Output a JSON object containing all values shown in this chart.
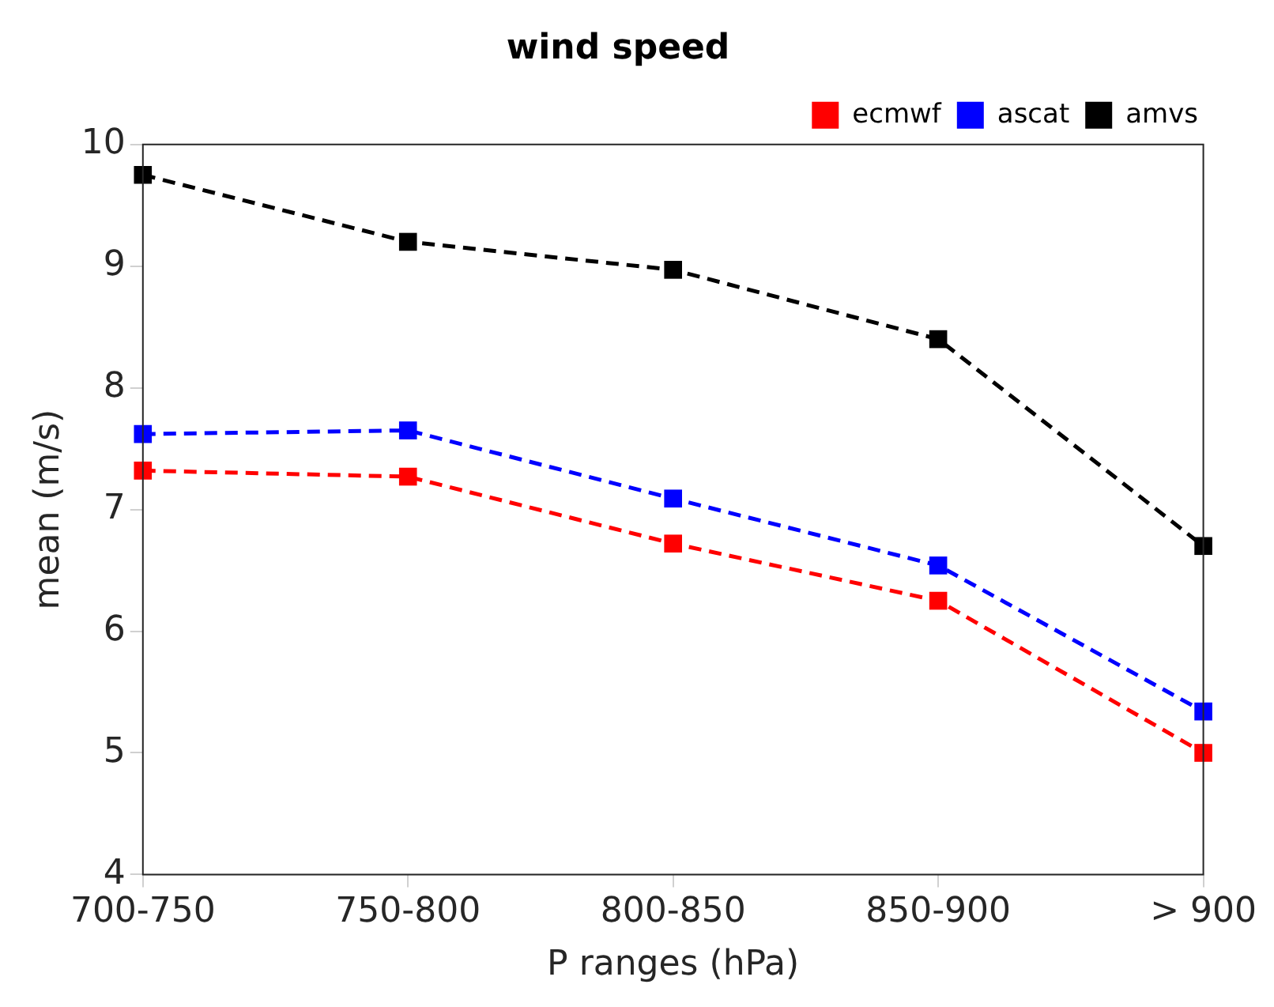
{
  "chart_data": {
    "type": "line",
    "title": "wind speed",
    "xlabel": "P ranges (hPa)",
    "ylabel": "mean (m/s)",
    "categories": [
      "700-750",
      "750-800",
      "800-850",
      "850-900",
      "> 900"
    ],
    "series": [
      {
        "name": "ecmwf",
        "color": "#ff0000",
        "values": [
          7.32,
          7.27,
          6.72,
          6.25,
          5.0
        ]
      },
      {
        "name": "ascat",
        "color": "#0000ff",
        "values": [
          7.62,
          7.65,
          7.09,
          6.54,
          5.34
        ]
      },
      {
        "name": "amvs",
        "color": "#000000",
        "values": [
          9.75,
          9.2,
          8.97,
          8.4,
          6.7
        ]
      }
    ],
    "ylim": [
      4,
      10
    ],
    "yticks": [
      4,
      5,
      6,
      7,
      8,
      9,
      10
    ],
    "grid": false,
    "legend": "top right",
    "marker": "square",
    "line_style": "dashed"
  }
}
